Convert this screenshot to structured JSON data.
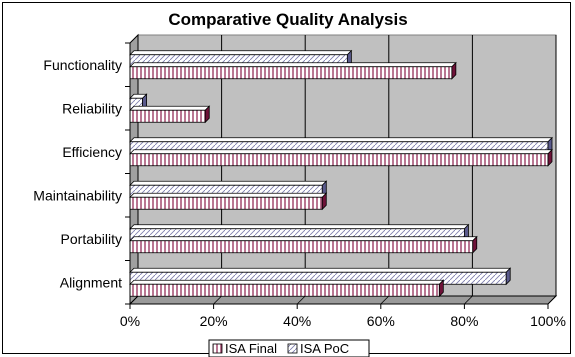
{
  "chart_data": {
    "type": "bar",
    "orientation": "horizontal",
    "title": "Comparative Quality Analysis",
    "categories": [
      "Functionality",
      "Reliability",
      "Efficiency",
      "Maintainability",
      "Portability",
      "Alignment"
    ],
    "series": [
      {
        "name": "ISA Final",
        "values": [
          77,
          18,
          100,
          46,
          82,
          74
        ],
        "pattern": "vertical-lines",
        "color": "#8b1a4a"
      },
      {
        "name": "ISA PoC",
        "values": [
          52,
          3,
          100,
          46,
          80,
          90
        ],
        "pattern": "diagonal-lines",
        "color": "#7f7fb0"
      }
    ],
    "x_ticks": [
      "0%",
      "20%",
      "40%",
      "60%",
      "80%",
      "100%"
    ],
    "xlim": [
      0,
      100
    ],
    "grid": true,
    "plot_background": "#c0c0c0",
    "legend_position": "bottom"
  }
}
